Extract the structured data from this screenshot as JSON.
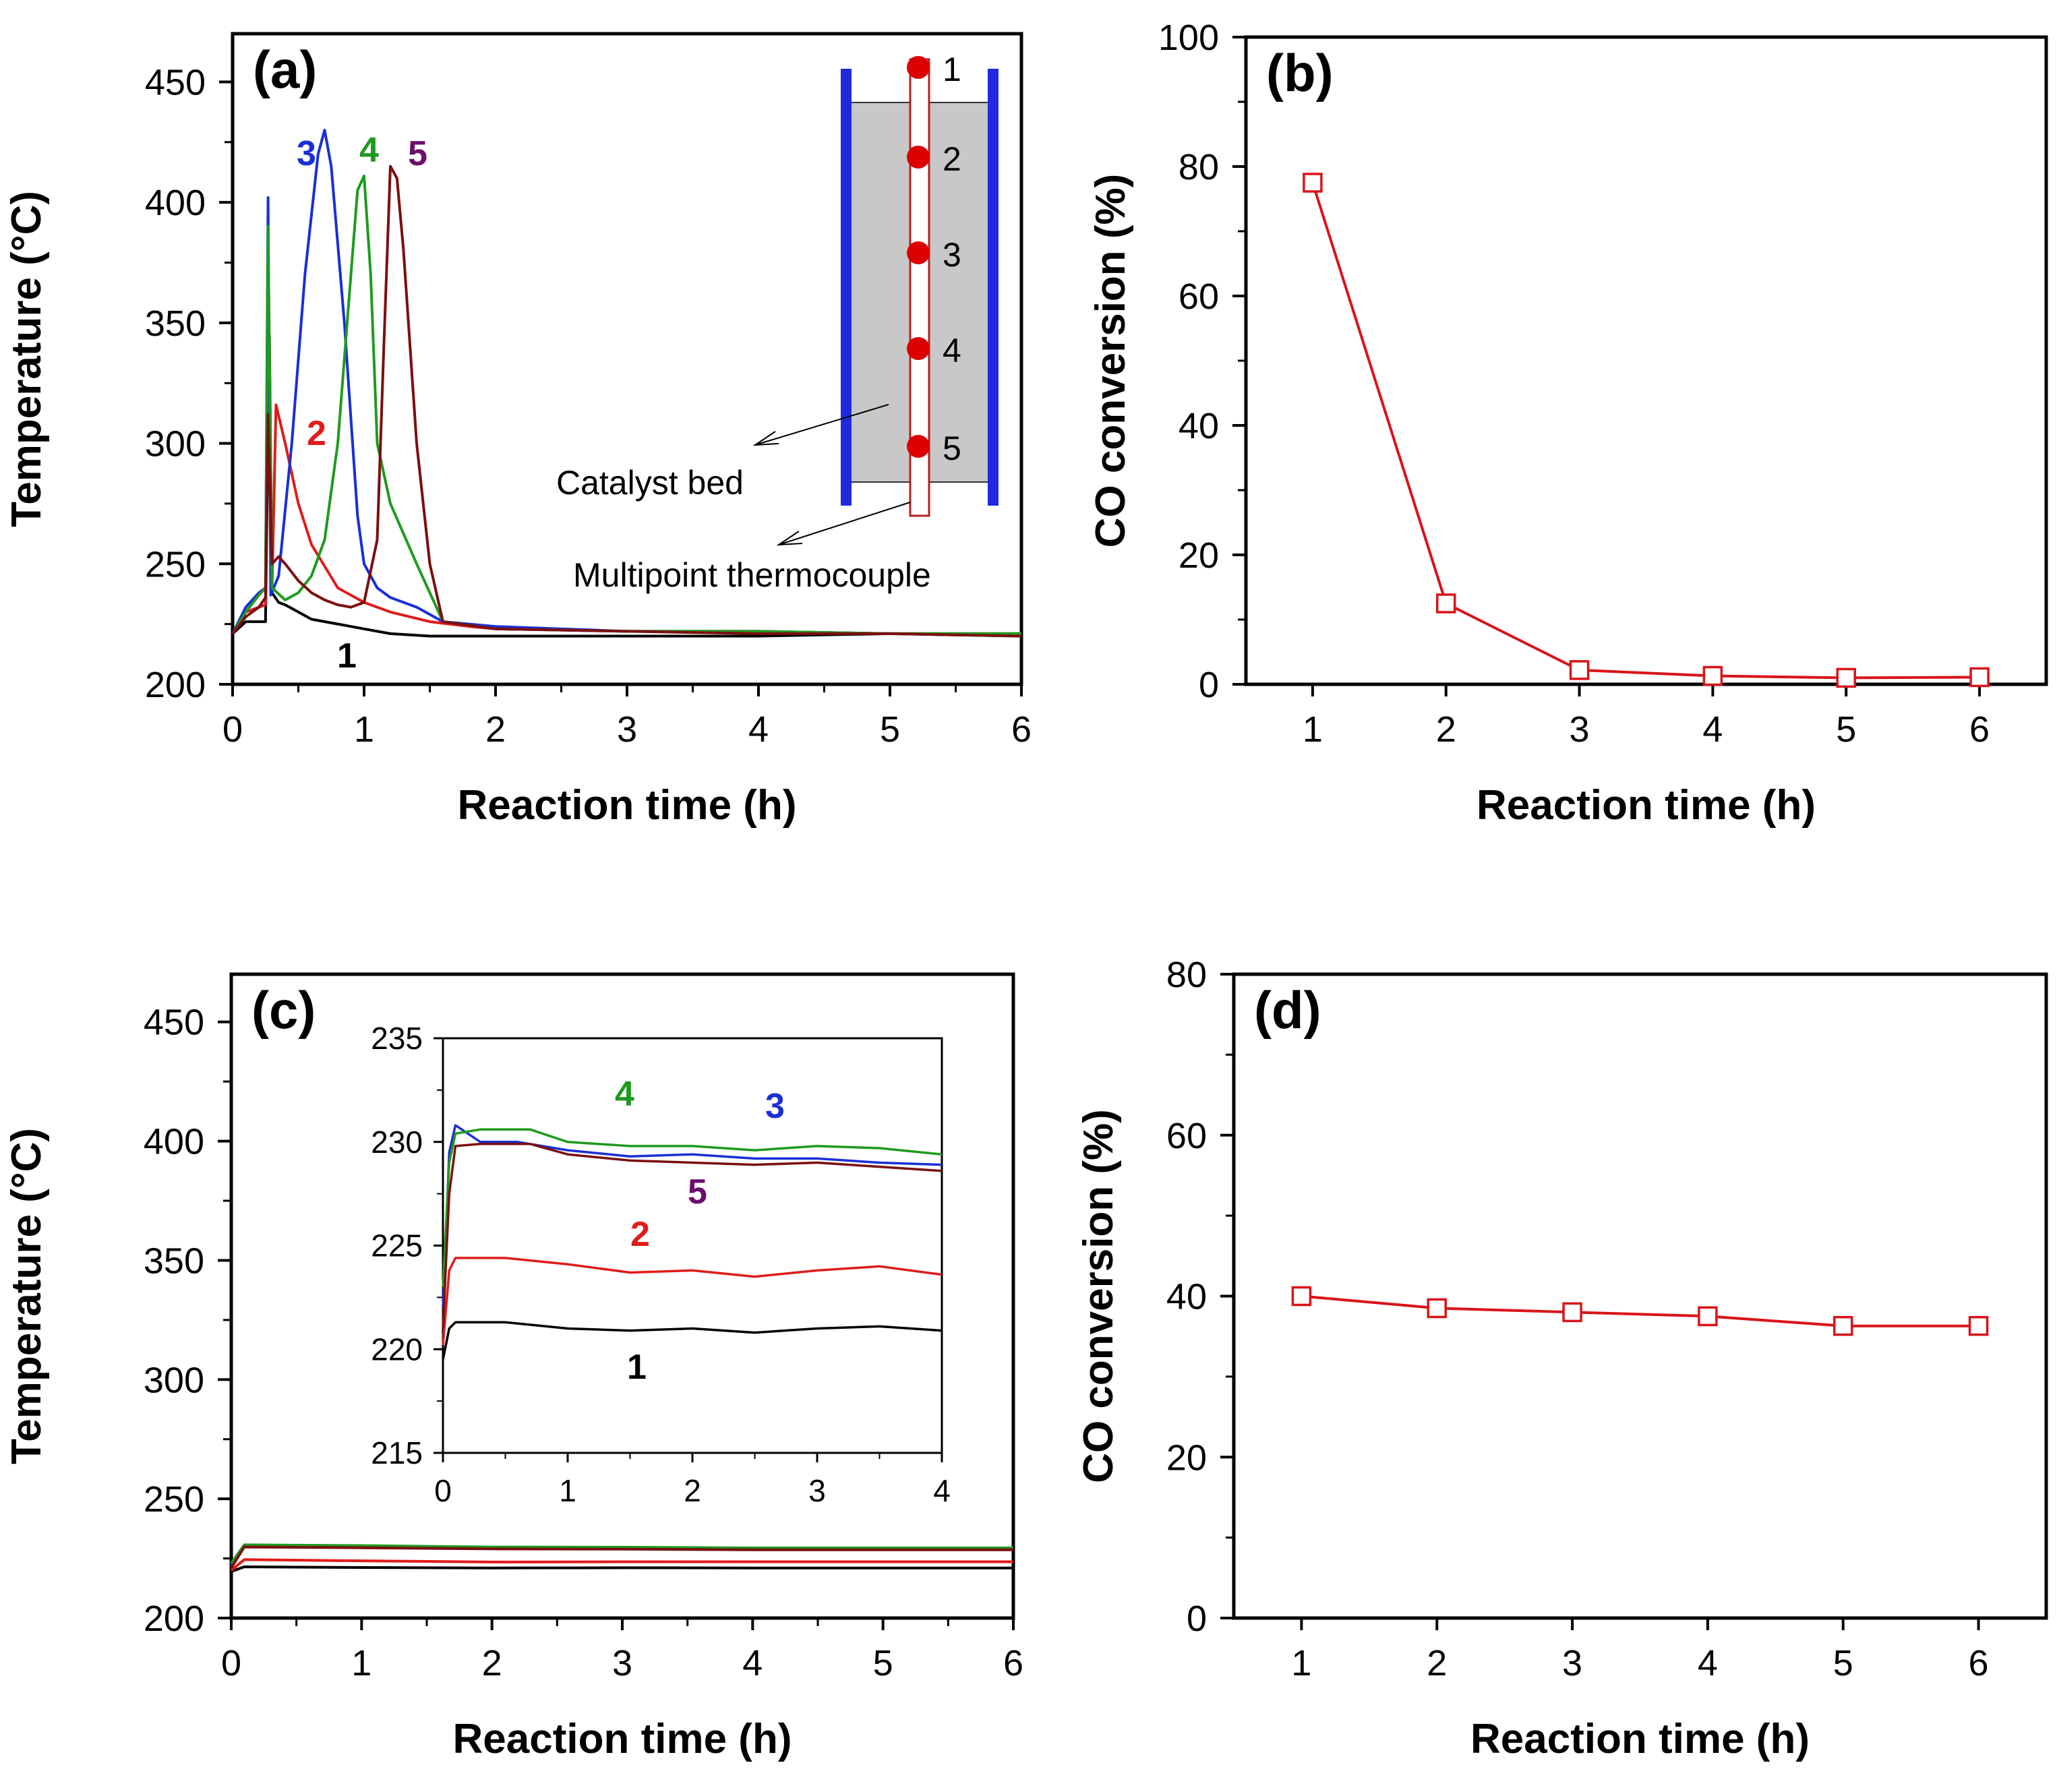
{
  "colors": {
    "curve_1": "#000000",
    "curve_2": "#e01b1b",
    "curve_3": "#1a2fd6",
    "curve_4": "#1f9a1f",
    "curve_5": "#7b0f0f",
    "curve_5_label": "#6b0f6b",
    "conversion": "#d9141a",
    "reactor_wall": "#1f2ae0",
    "catalyst_bed": "#c8c8c8",
    "thermocouple_point": "#dd0000"
  },
  "chart_data": [
    {
      "id": "a",
      "type": "line",
      "panel_label": "(a)",
      "xlabel": "Reaction time  (h)",
      "ylabel": "Temperature (°C)",
      "xlim": [
        0,
        6
      ],
      "ylim": [
        200,
        470
      ],
      "xticks": [
        "0",
        "1",
        "2",
        "3",
        "4",
        "5",
        "6"
      ],
      "yticks": [
        "200",
        "250",
        "300",
        "350",
        "400",
        "450"
      ],
      "series": [
        {
          "name": "1",
          "x": [
            0,
            0.1,
            0.25,
            0.28,
            0.3,
            0.35,
            0.4,
            0.5,
            0.6,
            0.8,
            1.0,
            1.2,
            1.5,
            2,
            3,
            4,
            5,
            6
          ],
          "values": [
            221,
            226,
            226,
            345,
            238,
            234,
            233,
            230,
            227,
            225,
            223,
            221,
            220,
            220,
            220,
            220,
            221,
            220
          ]
        },
        {
          "name": "2",
          "x": [
            0,
            0.1,
            0.25,
            0.27,
            0.3,
            0.33,
            0.4,
            0.5,
            0.6,
            0.8,
            1.0,
            1.2,
            1.5,
            1.8,
            2,
            3,
            4,
            5,
            6
          ],
          "values": [
            221,
            230,
            233,
            330,
            240,
            316,
            300,
            275,
            258,
            240,
            234,
            230,
            226,
            224,
            223,
            222,
            222,
            221,
            221
          ]
        },
        {
          "name": "3",
          "x": [
            0,
            0.1,
            0.2,
            0.25,
            0.27,
            0.29,
            0.35,
            0.45,
            0.55,
            0.65,
            0.7,
            0.75,
            0.85,
            0.95,
            1.0,
            1.1,
            1.2,
            1.4,
            1.6,
            2,
            3,
            4,
            5,
            6
          ],
          "values": [
            221,
            232,
            238,
            240,
            402,
            237,
            245,
            300,
            370,
            420,
            430,
            415,
            350,
            270,
            250,
            240,
            236,
            232,
            226,
            224,
            222,
            222,
            221,
            221
          ]
        },
        {
          "name": "4",
          "x": [
            0,
            0.1,
            0.2,
            0.25,
            0.27,
            0.3,
            0.4,
            0.5,
            0.6,
            0.7,
            0.8,
            0.9,
            0.95,
            1.0,
            1.05,
            1.1,
            1.2,
            1.4,
            1.6,
            2,
            3,
            4,
            5,
            6
          ],
          "values": [
            221,
            230,
            237,
            240,
            390,
            240,
            235,
            238,
            245,
            260,
            300,
            370,
            405,
            411,
            370,
            300,
            275,
            250,
            226,
            223,
            222,
            222,
            221,
            221
          ]
        },
        {
          "name": "5",
          "x": [
            0,
            0.1,
            0.2,
            0.25,
            0.27,
            0.3,
            0.35,
            0.4,
            0.5,
            0.6,
            0.7,
            0.8,
            0.9,
            1.0,
            1.1,
            1.15,
            1.2,
            1.25,
            1.3,
            1.4,
            1.5,
            1.6,
            2,
            3,
            4,
            5,
            6
          ],
          "values": [
            221,
            228,
            232,
            236,
            312,
            250,
            253,
            250,
            243,
            238,
            235,
            233,
            232,
            234,
            260,
            340,
            415,
            410,
            380,
            300,
            250,
            226,
            223,
            222,
            221,
            221,
            220
          ]
        }
      ],
      "curve_labels": [
        "1",
        "2",
        "3",
        "4",
        "5"
      ],
      "inset": {
        "points": [
          "1",
          "2",
          "3",
          "4",
          "5"
        ],
        "annotation_catalyst": "Catalyst bed",
        "annotation_thermocouple": "Multipoint thermocouple"
      }
    },
    {
      "id": "b",
      "type": "line",
      "panel_label": "(b)",
      "xlabel": "Reaction time  (h)",
      "ylabel": "CO conversion (%)",
      "xlim": [
        0.5,
        6.5
      ],
      "ylim": [
        0,
        100
      ],
      "xticks": [
        "1",
        "2",
        "3",
        "4",
        "5",
        "6"
      ],
      "yticks": [
        "0",
        "20",
        "40",
        "60",
        "80",
        "100"
      ],
      "series": [
        {
          "name": "CO conversion",
          "x": [
            1,
            2,
            3,
            4,
            5,
            6
          ],
          "values": [
            77.5,
            12.5,
            2.2,
            1.3,
            1.0,
            1.1
          ]
        }
      ]
    },
    {
      "id": "c",
      "type": "line",
      "panel_label": "(c)",
      "xlabel": "Reaction time  (h)",
      "ylabel": "Temperature (°C)",
      "xlim": [
        0,
        6
      ],
      "ylim": [
        200,
        470
      ],
      "xticks": [
        "0",
        "1",
        "2",
        "3",
        "4",
        "5",
        "6"
      ],
      "yticks": [
        "200",
        "250",
        "300",
        "350",
        "400",
        "450"
      ],
      "series": [
        {
          "name": "1",
          "x": [
            0,
            0.1,
            1,
            2,
            3,
            4,
            5,
            6
          ],
          "values": [
            219.5,
            221.5,
            221.2,
            221.0,
            221.1,
            221.0,
            221.0,
            221.0
          ]
        },
        {
          "name": "2",
          "x": [
            0,
            0.1,
            1,
            2,
            3,
            4,
            5,
            6
          ],
          "values": [
            220,
            224.5,
            224.0,
            223.5,
            223.6,
            223.6,
            223.6,
            223.6
          ]
        },
        {
          "name": "3",
          "x": [
            0,
            0.1,
            1,
            2,
            3,
            4,
            5,
            6
          ],
          "values": [
            222,
            230.5,
            229.8,
            229.4,
            229.2,
            228.9,
            228.9,
            228.9
          ]
        },
        {
          "name": "4",
          "x": [
            0,
            0.1,
            1,
            2,
            3,
            4,
            5,
            6
          ],
          "values": [
            223,
            230.7,
            230.4,
            229.8,
            229.7,
            229.4,
            229.4,
            229.4
          ]
        },
        {
          "name": "5",
          "x": [
            0,
            0.1,
            1,
            2,
            3,
            4,
            5,
            6
          ],
          "values": [
            221,
            229.8,
            229.5,
            229.0,
            228.9,
            228.6,
            228.6,
            228.6
          ]
        }
      ],
      "inset": {
        "type": "line",
        "xlim": [
          0,
          4
        ],
        "ylim": [
          215,
          235
        ],
        "xticks": [
          "0",
          "1",
          "2",
          "3",
          "4"
        ],
        "yticks": [
          "215",
          "220",
          "225",
          "230",
          "235"
        ],
        "series": [
          {
            "name": "1",
            "x": [
              0,
              0.05,
              0.1,
              0.5,
              1,
              1.5,
              2,
              2.5,
              3,
              3.5,
              4
            ],
            "values": [
              219.5,
              221.0,
              221.3,
              221.3,
              221.0,
              220.9,
              221.0,
              220.8,
              221.0,
              221.1,
              220.9
            ]
          },
          {
            "name": "2",
            "x": [
              0,
              0.05,
              0.1,
              0.5,
              1,
              1.5,
              2,
              2.5,
              3,
              3.5,
              4
            ],
            "values": [
              220.2,
              223.8,
              224.4,
              224.4,
              224.1,
              223.7,
              223.8,
              223.5,
              223.8,
              224.0,
              223.6
            ]
          },
          {
            "name": "3",
            "x": [
              0,
              0.05,
              0.1,
              0.3,
              0.6,
              1,
              1.5,
              2,
              2.5,
              3,
              3.5,
              4
            ],
            "values": [
              222,
              229.5,
              230.8,
              230.0,
              230.0,
              229.6,
              229.3,
              229.4,
              229.2,
              229.2,
              229.0,
              228.9
            ]
          },
          {
            "name": "4",
            "x": [
              0,
              0.05,
              0.1,
              0.3,
              0.7,
              1,
              1.5,
              2,
              2.5,
              3,
              3.5,
              4
            ],
            "values": [
              223,
              229.0,
              230.4,
              230.6,
              230.6,
              230.0,
              229.8,
              229.8,
              229.6,
              229.8,
              229.7,
              229.4
            ]
          },
          {
            "name": "5",
            "x": [
              0,
              0.05,
              0.1,
              0.3,
              0.7,
              1,
              1.5,
              2,
              2.5,
              3,
              3.5,
              4
            ],
            "values": [
              221,
              227.5,
              229.8,
              229.9,
              229.9,
              229.4,
              229.1,
              229.0,
              228.9,
              229.0,
              228.8,
              228.6
            ]
          }
        ],
        "curve_labels": [
          "1",
          "2",
          "3",
          "4",
          "5"
        ]
      }
    },
    {
      "id": "d",
      "type": "line",
      "panel_label": "(d)",
      "xlabel": "Reaction time  (h)",
      "ylabel": "CO conversion (%)",
      "xlim": [
        0.5,
        6.5
      ],
      "ylim": [
        0,
        80
      ],
      "xticks": [
        "1",
        "2",
        "3",
        "4",
        "5",
        "6"
      ],
      "yticks": [
        "0",
        "20",
        "40",
        "60",
        "80"
      ],
      "series": [
        {
          "name": "CO conversion",
          "x": [
            1,
            2,
            3,
            4,
            5,
            6
          ],
          "values": [
            40.0,
            38.5,
            38.0,
            37.5,
            36.3,
            36.3
          ]
        }
      ]
    }
  ]
}
